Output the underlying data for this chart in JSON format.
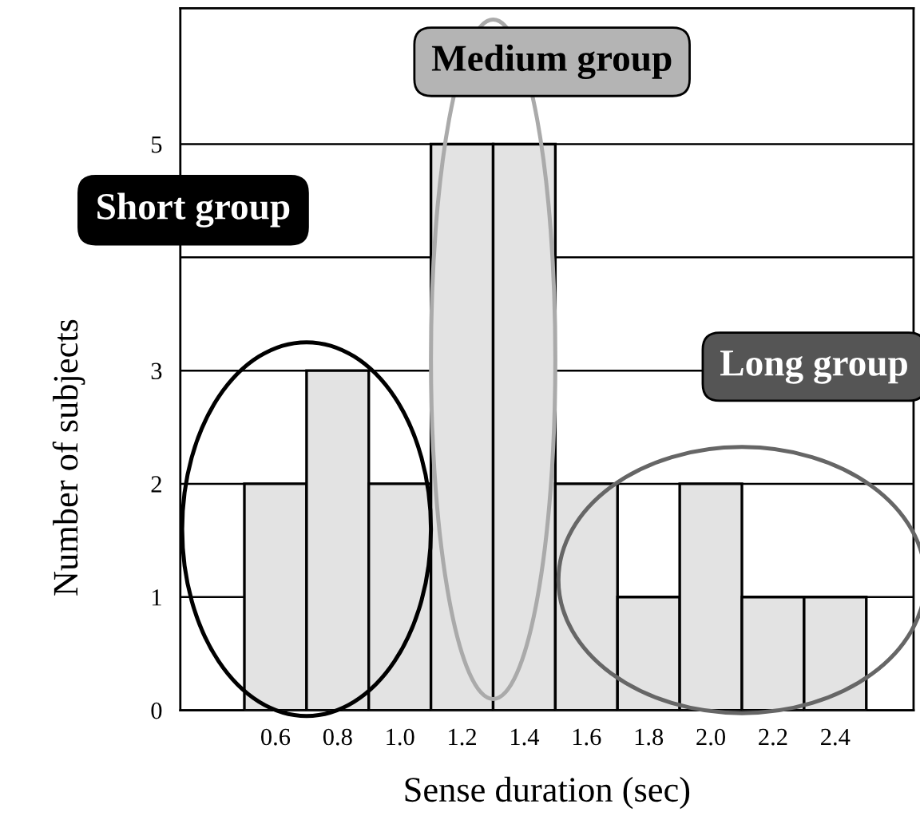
{
  "chart_data": {
    "type": "bar",
    "xlabel": "Sense duration (sec)",
    "ylabel": "Number of subjects",
    "categories": [
      "0.6",
      "0.8",
      "1.0",
      "1.2",
      "1.4",
      "1.6",
      "1.8",
      "2.0",
      "2.2",
      "2.4"
    ],
    "values": [
      2,
      3,
      2,
      5,
      5,
      2,
      1,
      2,
      1,
      1
    ],
    "color": "#e3e3e3",
    "ylim": [
      0,
      6.2
    ],
    "yticks": [
      0,
      1,
      2,
      3,
      {
        "value": 4,
        "label": null
      },
      5
    ],
    "grid": "y",
    "annotations": [
      "Short group",
      "Medium group",
      "Long group"
    ]
  }
}
